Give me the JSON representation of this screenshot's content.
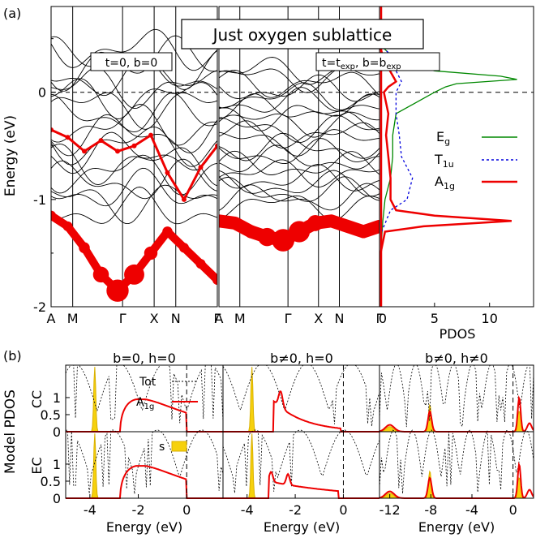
{
  "figure": {
    "panel_a_label": "(a)",
    "panel_b_label": "(b)",
    "banner": "Just oxygen sublattice",
    "ylabel_a": "Energy (eV)",
    "ylabel_b": "Model PDOS",
    "row_labels": [
      "CC",
      "EC"
    ],
    "pdos_xlabel": "PDOS"
  },
  "colors": {
    "red": "#ee0000",
    "green": "#008800",
    "blue": "#0000dd",
    "yellow": "#f6d10c",
    "black": "#000000"
  },
  "chart_data": [
    {
      "type": "line",
      "panel": "band structure left",
      "title": "t=0, b=0",
      "ylabel": "Energy (eV)",
      "ylim": [
        -2,
        0.8
      ],
      "yticks": [
        0,
        -1,
        -2
      ],
      "kpoints": [
        "A",
        "M",
        "Γ",
        "X",
        "N",
        "Γ"
      ],
      "fermi_level": 0,
      "red_bands": [
        {
          "name": "lower A1g band",
          "x": [
            0,
            0.5,
            1,
            1.5,
            2,
            2.5,
            3,
            3.5,
            4,
            4.5,
            5
          ],
          "y": [
            -1.15,
            -1.25,
            -1.45,
            -1.7,
            -1.85,
            -1.7,
            -1.5,
            -1.3,
            -1.45,
            -1.6,
            -1.75
          ]
        },
        {
          "name": "upper A1g band",
          "x": [
            0,
            0.5,
            1,
            1.5,
            2,
            2.5,
            3,
            3.5,
            4,
            4.5,
            5
          ],
          "y": [
            -0.35,
            -0.42,
            -0.55,
            -0.45,
            -0.55,
            -0.5,
            -0.4,
            -0.75,
            -1.0,
            -0.7,
            -0.5
          ]
        }
      ]
    },
    {
      "type": "line",
      "panel": "band structure right",
      "title_main": "t=t",
      "title_sub1": "exp",
      "title_mid": ", b=b",
      "title_sub2": "exp",
      "kpoints": [
        "A",
        "M",
        "Γ",
        "X",
        "N",
        "Γ"
      ],
      "fermi_level": 0,
      "red_bands": [
        {
          "name": "flat A1g band",
          "x": [
            0,
            0.5,
            1,
            1.5,
            2,
            2.5,
            3,
            3.5,
            4,
            4.5,
            5
          ],
          "y": [
            -1.2,
            -1.22,
            -1.3,
            -1.35,
            -1.38,
            -1.3,
            -1.22,
            -1.2,
            -1.25,
            -1.3,
            -1.25
          ]
        }
      ]
    },
    {
      "type": "line",
      "panel": "PDOS",
      "xlabel": "PDOS",
      "xticks": [
        0,
        5,
        10
      ],
      "xlim": [
        0,
        14
      ],
      "series": [
        {
          "name": "Eg",
          "label_main": "E",
          "label_sub": "g",
          "color": "#008800",
          "y": [
            0.45,
            0.3,
            0.2,
            0.15,
            0.12,
            0.08,
            0.05,
            0.0,
            -0.2,
            -0.4,
            -0.6,
            -0.8,
            -1.0,
            -1.2,
            -1.5,
            -2.0
          ],
          "x": [
            0,
            1.5,
            5,
            11,
            12.5,
            7,
            6,
            5,
            1.5,
            1.2,
            1.2,
            1.0,
            0.5,
            0.3,
            0.1,
            0
          ]
        },
        {
          "name": "T1u",
          "label_main": "T",
          "label_sub": "1u",
          "color": "#0000dd",
          "y": [
            0.45,
            0.3,
            0.2,
            0.1,
            0.0,
            -0.2,
            -0.4,
            -0.6,
            -0.8,
            -1.0,
            -1.1,
            -1.3,
            -1.5,
            -2.0
          ],
          "x": [
            0,
            1.5,
            1.5,
            2.0,
            1.5,
            1.5,
            1.8,
            2.0,
            3.0,
            2.5,
            1.0,
            0.2,
            0.1,
            0
          ]
        },
        {
          "name": "A1g",
          "label_main": "A",
          "label_sub": "1g",
          "color": "#ee0000",
          "y": [
            0.45,
            0.3,
            0.1,
            0.05,
            0.0,
            -0.2,
            -0.4,
            -0.6,
            -0.8,
            -1.0,
            -1.1,
            -1.15,
            -1.2,
            -1.25,
            -1.3,
            -1.5,
            -2.0
          ],
          "x": [
            0,
            0.4,
            1.5,
            0.8,
            0.4,
            0.8,
            0.6,
            0.8,
            1.0,
            1.0,
            1.5,
            5.0,
            12.0,
            4.0,
            0.5,
            0.1,
            0
          ]
        }
      ]
    },
    {
      "type": "line",
      "panel": "model PDOS grid",
      "columns": [
        {
          "title": "b=0, h=0",
          "xlim": [
            -5,
            1.5
          ],
          "xticks": [
            -4,
            -2,
            0
          ]
        },
        {
          "title": "b≠0, h=0",
          "xlim": [
            -5,
            1.5
          ],
          "xticks": [
            -4,
            -2,
            0
          ]
        },
        {
          "title": "b≠0, h≠0",
          "xlim": [
            -13,
            2
          ],
          "xticks": [
            -12,
            -8,
            -4,
            0
          ]
        }
      ],
      "xlabel": "Energy (eV)",
      "yticks": [
        0,
        0.5,
        1
      ],
      "ylim": [
        0,
        1.95
      ],
      "legend": [
        "Tot",
        "A1g",
        "s"
      ],
      "legend_a1g_main": "A",
      "legend_a1g_sub": "1g",
      "fermi_level": 0
    }
  ]
}
